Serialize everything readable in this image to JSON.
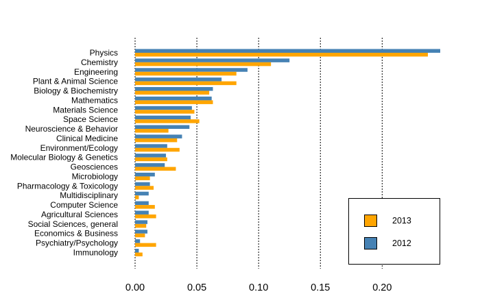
{
  "chart_data": {
    "type": "bar",
    "orientation": "horizontal",
    "categories": [
      "Physics",
      "Chemistry",
      "Engineering",
      "Plant & Animal Science",
      "Biology & Biochemistry",
      "Mathematics",
      "Materials Science",
      "Space Science",
      "Neuroscience & Behavior",
      "Clinical Medicine",
      "Environment/Ecology",
      "Molecular Biology & Genetics",
      "Geosciences",
      "Microbiology",
      "Pharmacology & Toxicology",
      "Multidisciplinary",
      "Computer Science",
      "Agricultural Sciences",
      "Social Sciences, general",
      "Economics & Business",
      "Psychiatry/Psychology",
      "Immunology"
    ],
    "series": [
      {
        "name": "2012",
        "color": "#4682b4",
        "values": [
          0.247,
          0.125,
          0.091,
          0.07,
          0.063,
          0.062,
          0.046,
          0.045,
          0.044,
          0.038,
          0.026,
          0.025,
          0.024,
          0.016,
          0.012,
          0.011,
          0.011,
          0.011,
          0.01,
          0.01,
          0.004,
          0.003
        ]
      },
      {
        "name": "2013",
        "color": "#ffa500",
        "values": [
          0.237,
          0.11,
          0.082,
          0.082,
          0.06,
          0.063,
          0.048,
          0.052,
          0.027,
          0.034,
          0.036,
          0.026,
          0.033,
          0.012,
          0.015,
          0.003,
          0.016,
          0.017,
          0.009,
          0.008,
          0.017,
          0.006
        ]
      }
    ],
    "xlim": [
      0,
      0.247
    ],
    "xticks": [
      0.0,
      0.05,
      0.1,
      0.15,
      0.2
    ],
    "xtick_labels": [
      "0.00",
      "0.05",
      "0.10",
      "0.15",
      "0.20"
    ],
    "grid": "vertical dotted",
    "legend": {
      "position": "bottom-right",
      "entries": [
        {
          "label": "2013",
          "color": "#ffa500"
        },
        {
          "label": "2012",
          "color": "#4682b4"
        }
      ]
    }
  }
}
